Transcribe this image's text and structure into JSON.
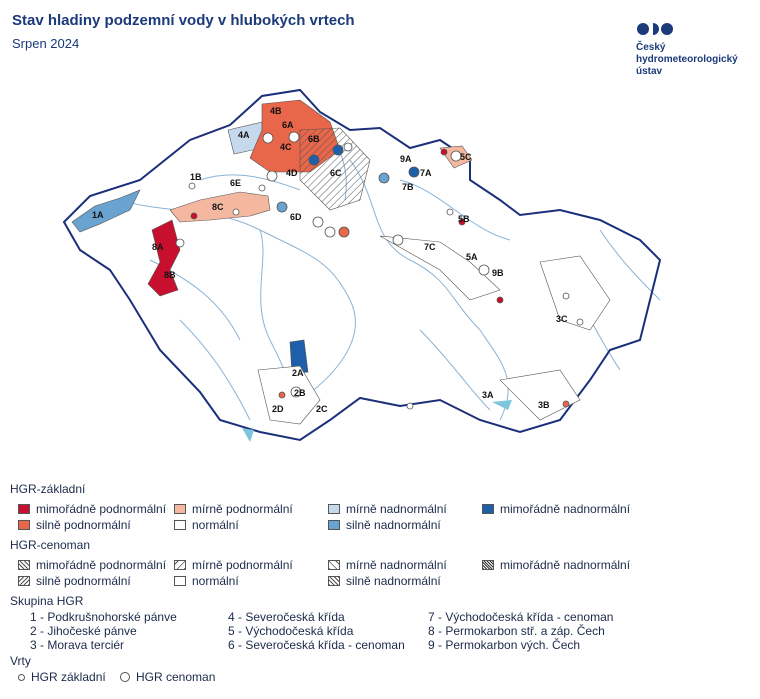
{
  "header": {
    "title": "Stav hladiny podzemní vody v hlubokých vrtech",
    "subtitle": "Srpen 2024"
  },
  "logo": {
    "line1": "Český",
    "line2": "hydrometeorologický",
    "line3": "ústav"
  },
  "colors": {
    "mimoradne_podnormalni": "#c8102e",
    "silne_podnormalni": "#e8664a",
    "mirne_podnormalni": "#f4b8a0",
    "normalni": "#ffffff",
    "mirne_nadnormalni": "#c6d9ec",
    "silne_nadnormalni": "#6aa3cf",
    "mimoradne_nadnormalni": "#1d5fa8",
    "border": "#1b2f7a",
    "river": "#8ab3d6",
    "lake": "#7cc6dd"
  },
  "map": {
    "region_labels": [
      "1A",
      "1B",
      "2A",
      "2B",
      "2C",
      "2D",
      "3A",
      "3B",
      "3C",
      "4A",
      "4B",
      "4C",
      "4D",
      "5A",
      "5B",
      "5C",
      "6A",
      "6B",
      "6C",
      "6D",
      "6E",
      "7A",
      "7B",
      "7C",
      "8A",
      "8B",
      "8C",
      "9A",
      "9B"
    ]
  },
  "legend": {
    "zakladni_title": "HGR-základní",
    "zakladni": [
      {
        "label": "mimořádně podnormální",
        "color_key": "mimoradne_podnormalni"
      },
      {
        "label": "mírně podnormální",
        "color_key": "mirne_podnormalni"
      },
      {
        "label": "mírně nadnormální",
        "color_key": "mirne_nadnormalni"
      },
      {
        "label": "mimořádně nadnormální",
        "color_key": "mimoradne_nadnormalni"
      },
      {
        "label": "silně podnormální",
        "color_key": "silne_podnormalni"
      },
      {
        "label": "normální",
        "color_key": "normalni"
      },
      {
        "label": "silně nadnormální",
        "color_key": "silne_nadnormalni"
      }
    ],
    "cenoman_title": "HGR-cenoman",
    "cenoman": [
      {
        "label": "mimořádně podnormální",
        "pattern": "cross"
      },
      {
        "label": "mírně podnormální",
        "pattern": "back"
      },
      {
        "label": "mírně nadnormální",
        "pattern": "fwd"
      },
      {
        "label": "mimořádně nadnormální",
        "pattern": "dense"
      },
      {
        "label": "silně podnormální",
        "pattern": "back2"
      },
      {
        "label": "normální",
        "pattern": "none"
      },
      {
        "label": "silně nadnormální",
        "pattern": "fwd2"
      }
    ],
    "skupina_title": "Skupina HGR",
    "skupiny": [
      "1 - Podkrušnohorské pánve",
      "4 - Severočeská křída",
      "7 - Východočeská křída - cenoman",
      "2 - Jihočeské pánve",
      "5 - Východočeská křída",
      "8 - Permokarbon stř. a záp. Čech",
      "3 - Morava terciér",
      "6 - Severočeská křída - cenoman",
      "9 - Permokarbon vých. Čech"
    ],
    "vrty_title": "Vrty",
    "vrty": [
      "HGR základní",
      "HGR cenoman"
    ]
  }
}
